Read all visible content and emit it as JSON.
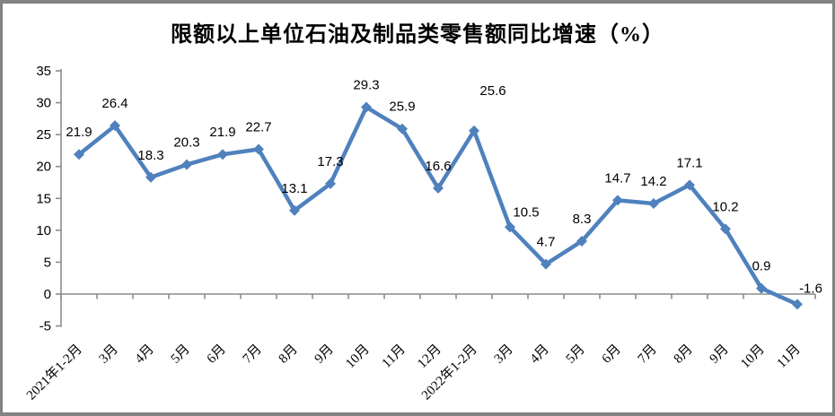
{
  "chart": {
    "title": "限额以上单位石油及制品类零售额同比增速（%）"
  },
  "chart_data": {
    "type": "line",
    "title": "限额以上单位石油及制品类零售额同比增速（%）",
    "categories": [
      "2021年1-2月",
      "3月",
      "4月",
      "5月",
      "6月",
      "7月",
      "8月",
      "9月",
      "10月",
      "11月",
      "12月",
      "2022年1-2月",
      "3月",
      "4月",
      "5月",
      "6月",
      "7月",
      "8月",
      "9月",
      "10月",
      "11月"
    ],
    "values": [
      21.9,
      26.4,
      18.3,
      20.3,
      21.9,
      22.7,
      13.1,
      17.3,
      29.3,
      25.9,
      16.6,
      25.6,
      10.5,
      4.7,
      8.3,
      14.7,
      14.2,
      17.1,
      10.2,
      0.9,
      -1.6
    ],
    "y_ticks": [
      35,
      30,
      25,
      20,
      15,
      10,
      5,
      0,
      -5
    ],
    "ylim": [
      -5,
      35
    ],
    "xlabel": "",
    "ylabel": "",
    "grid": false,
    "legend": "none",
    "marker": "diamond",
    "colors": {
      "line": "#4F81BD",
      "axis": "#8C8C8C",
      "text": "#000000",
      "frame_border": "#828282",
      "background": "#FFFFFF"
    }
  }
}
